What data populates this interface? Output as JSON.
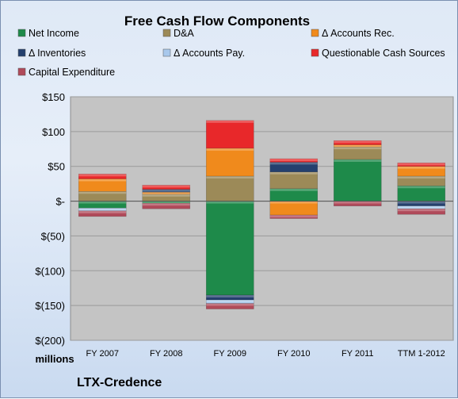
{
  "chart_data": {
    "type": "bar",
    "stacked": true,
    "title": "Free Cash Flow Components",
    "subtitle": "",
    "unit_label": "millions",
    "source_label": "LTX-Credence",
    "categories": [
      "FY 2007",
      "FY 2008",
      "FY 2009",
      "FY 2010",
      "FY 2011",
      "TTM 1-2012"
    ],
    "ylim": [
      -200,
      150
    ],
    "yticks": [
      {
        "value": 150,
        "label": "$150"
      },
      {
        "value": 100,
        "label": "$100"
      },
      {
        "value": 50,
        "label": "$50"
      },
      {
        "value": 0,
        "label": "$-"
      },
      {
        "value": -50,
        "label": "$(50)"
      },
      {
        "value": -100,
        "label": "$(100)"
      },
      {
        "value": -150,
        "label": "$(150)"
      },
      {
        "value": -200,
        "label": "$(200)"
      }
    ],
    "grid": true,
    "legend_position": "top",
    "series": [
      {
        "name": "Net Income",
        "color": "#1e8a4a",
        "values": [
          -10,
          -3,
          -135,
          18,
          60,
          22
        ]
      },
      {
        "name": "D&A",
        "color": "#9c8a58",
        "values": [
          14,
          10,
          36,
          24,
          18,
          14
        ]
      },
      {
        "name": "Δ Accounts Rec.",
        "color": "#f08a1c",
        "values": [
          18,
          3,
          40,
          -20,
          3,
          14
        ]
      },
      {
        "name": "Δ Inventories",
        "color": "#24406e",
        "values": [
          0,
          4,
          -7,
          14,
          0,
          -7
        ]
      },
      {
        "name": "Δ Accounts Pay.",
        "color": "#a8c8ec",
        "values": [
          -4,
          0,
          -5,
          0,
          0,
          -4
        ]
      },
      {
        "name": "Questionable Cash Sources",
        "color": "#e8282a",
        "values": [
          7,
          6,
          40,
          5,
          6,
          5
        ]
      },
      {
        "name": "Capital Expenditure",
        "color": "#b04a5a",
        "values": [
          -8,
          -8,
          -8,
          -5,
          -7,
          -8
        ]
      }
    ]
  }
}
